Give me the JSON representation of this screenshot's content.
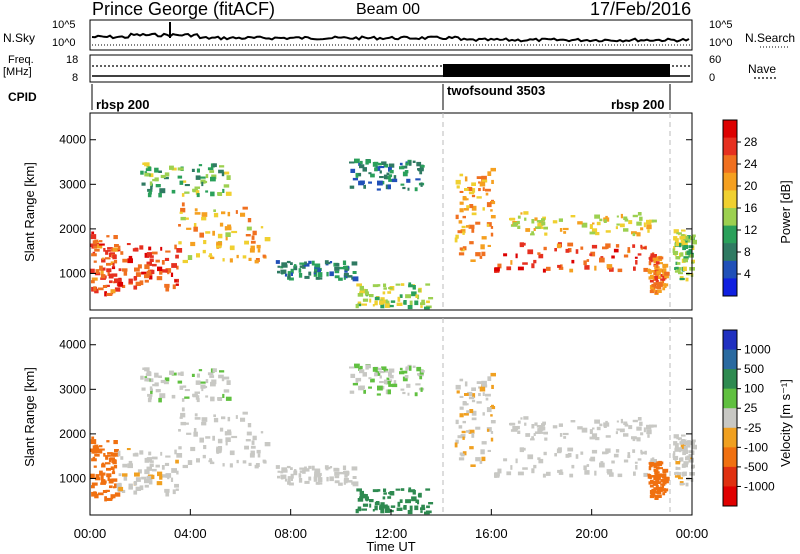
{
  "header": {
    "station": "Prince George (fitACF)",
    "beam": "Beam 00",
    "date": "17/Feb/2016"
  },
  "noise_panel": {
    "left_label": "N.Sky",
    "left_ticks": [
      "10^5",
      "10^0"
    ],
    "right_label": "N.Search",
    "right_ticks": [
      "10^5",
      "10^0"
    ]
  },
  "freq_panel": {
    "left_label_line1": "Freq.",
    "left_label_line2": "[MHz]",
    "left_ticks": [
      "18",
      "8"
    ],
    "right_label": "Nave",
    "right_ticks": [
      "60",
      "0"
    ]
  },
  "cpid_panel": {
    "label": "CPID",
    "segments": [
      {
        "name": "rbsp 200",
        "start_hour": 0,
        "end_hour": 14.1
      },
      {
        "name": "twofsound 3503",
        "start_hour": 14.1,
        "end_hour": 23.0
      },
      {
        "name": "rbsp 200",
        "start_hour": 23.0,
        "end_hour": 24
      }
    ]
  },
  "x_axis": {
    "label": "Time UT",
    "ticks": [
      "00:00",
      "04:00",
      "08:00",
      "12:00",
      "16:00",
      "20:00",
      "00:00"
    ],
    "range_hours": [
      0,
      24
    ]
  },
  "power_panel": {
    "ylabel": "Slant Range [km]",
    "y_ticks": [
      "1000",
      "2000",
      "3000",
      "4000"
    ],
    "colorbar_label": "Power [dB]",
    "colorbar_ticks": [
      "4",
      "8",
      "12",
      "16",
      "20",
      "24",
      "28"
    ],
    "colorbar_colors": [
      "#1020e0",
      "#2050b8",
      "#2f7a62",
      "#2aa05a",
      "#9cd050",
      "#f0d030",
      "#f5a020",
      "#f07020",
      "#e63020",
      "#dd0000"
    ]
  },
  "velocity_panel": {
    "ylabel": "Slant Range [km]",
    "y_ticks": [
      "1000",
      "2000",
      "3000",
      "4000"
    ],
    "colorbar_label": "Velocity [m s⁻¹]",
    "colorbar_ticks": [
      "1000",
      "500",
      "100",
      "25",
      "-25",
      "-100",
      "-500",
      "-1000"
    ],
    "colorbar_colors": [
      "#2030c0",
      "#2a6aa0",
      "#2e8a50",
      "#60c040",
      "#c8c8c4",
      "#f0a020",
      "#f07010",
      "#e03010",
      "#e00000"
    ]
  },
  "chart_data": {
    "type": "heatmap",
    "title": "Prince George (fitACF)",
    "xlabel": "Time UT",
    "ylabel": "Slant Range [km]",
    "xlim_hours": [
      0,
      24
    ],
    "ylim_km": [
      180,
      4600
    ],
    "blobs": [
      {
        "t0": 0.0,
        "t1": 1.0,
        "r0": 550,
        "r1": 2000,
        "power_db": 26,
        "velocity": -150
      },
      {
        "t0": 1.0,
        "t1": 3.5,
        "r0": 700,
        "r1": 1700,
        "power_db": 27,
        "velocity": -10
      },
      {
        "t0": 3.5,
        "t1": 7.0,
        "r0": 1300,
        "r1": 2600,
        "power_db": 20,
        "velocity": -5
      },
      {
        "t0": 2.0,
        "t1": 5.5,
        "r0": 2800,
        "r1": 3500,
        "power_db": 14,
        "velocity": 10
      },
      {
        "t0": 7.3,
        "t1": 10.5,
        "r0": 900,
        "r1": 1300,
        "power_db": 10,
        "velocity": 5
      },
      {
        "t0": 10.5,
        "t1": 13.5,
        "r0": 250,
        "r1": 800,
        "power_db": 16,
        "velocity": 150
      },
      {
        "t0": 10.3,
        "t1": 13.2,
        "r0": 2900,
        "r1": 3600,
        "power_db": 10,
        "velocity": 20
      },
      {
        "t0": 14.5,
        "t1": 16.0,
        "r0": 1300,
        "r1": 3400,
        "power_db": 22,
        "velocity": -20
      },
      {
        "t0": 16.0,
        "t1": 22.5,
        "r0": 1100,
        "r1": 1700,
        "power_db": 26,
        "velocity": -5
      },
      {
        "t0": 16.5,
        "t1": 22.5,
        "r0": 1900,
        "r1": 2400,
        "power_db": 18,
        "velocity": 0
      },
      {
        "t0": 22.2,
        "t1": 22.9,
        "r0": 600,
        "r1": 1400,
        "power_db": 24,
        "velocity": -400
      },
      {
        "t0": 23.2,
        "t1": 24.0,
        "r0": 900,
        "r1": 2000,
        "power_db": 16,
        "velocity": -10
      }
    ]
  }
}
